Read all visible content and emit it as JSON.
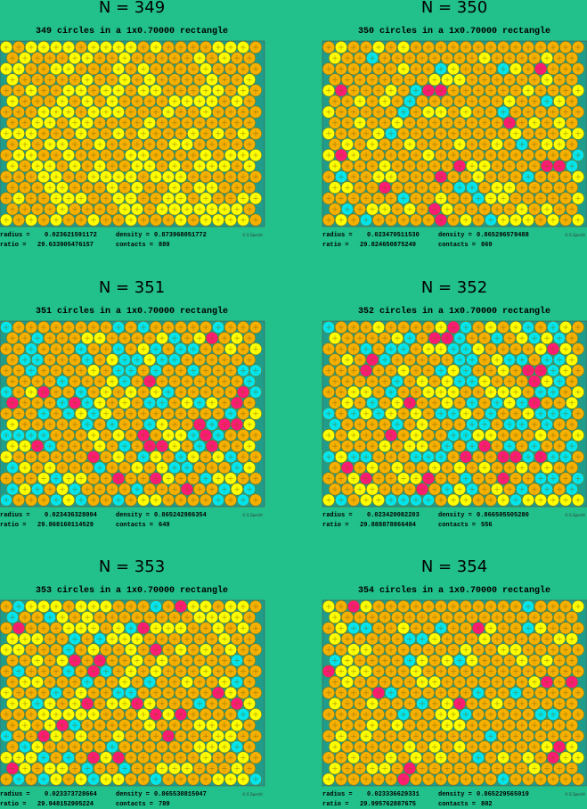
{
  "panels": [
    {
      "title": "N = 349",
      "subtitle": "349 circles in a 1x0.70000 rectangle",
      "radius_label": "radius =",
      "radius": "0.023621591172",
      "density_label": "density =",
      "density": "0.873968051772",
      "ratio_label": "ratio =",
      "ratio": "29.633905476157",
      "contacts_label": "contacts =",
      "contacts": "889",
      "credit": "© E.Specht"
    },
    {
      "title": "N = 350",
      "subtitle": "350 circles in a 1x0.70000 rectangle",
      "radius_label": "radius =",
      "radius": "0.023470511530",
      "density_label": "density =",
      "density": "0.865296579488",
      "ratio_label": "ratio =",
      "ratio": "29.824650875249",
      "contacts_label": "contacts =",
      "contacts": "869",
      "credit": "© E.Specht"
    },
    {
      "title": "N = 351",
      "subtitle": "351 circles in a 1x0.70000 rectangle",
      "radius_label": "radius =",
      "radius": "0.023436328094",
      "density_label": "density =",
      "density": "0.865242986354",
      "ratio_label": "ratio =",
      "ratio": "29.868160114529",
      "contacts_label": "contacts =",
      "contacts": "649",
      "credit": "© E.Specht"
    },
    {
      "title": "N = 352",
      "subtitle": "352 circles in a 1x0.70000 rectangle",
      "radius_label": "radius =",
      "radius": "0.023420082203",
      "density_label": "density =",
      "density": "0.866505505280",
      "ratio_label": "ratio =",
      "ratio": "29.888878866484",
      "contacts_label": "contacts =",
      "contacts": "556",
      "credit": "© E.Specht"
    },
    {
      "title": "N = 353",
      "subtitle": "353 circles in a 1x0.70000 rectangle",
      "radius_label": "radius =",
      "radius": "0.023373728664",
      "density_label": "density =",
      "density": "0.865530815047",
      "ratio_label": "ratio =",
      "ratio": "29.948152905224",
      "contacts_label": "contacts =",
      "contacts": "789",
      "credit": "© E.Specht"
    },
    {
      "title": "N = 354",
      "subtitle": "354 circles in a 1x0.70000 rectangle",
      "radius_label": "radius =",
      "radius": "0.023336629331",
      "density_label": "density =",
      "density": "0.865229565019",
      "ratio_label": "ratio =",
      "ratio": "29.995762887675",
      "contacts_label": "contacts =",
      "contacts": "802",
      "credit": "© E.Specht"
    }
  ]
}
